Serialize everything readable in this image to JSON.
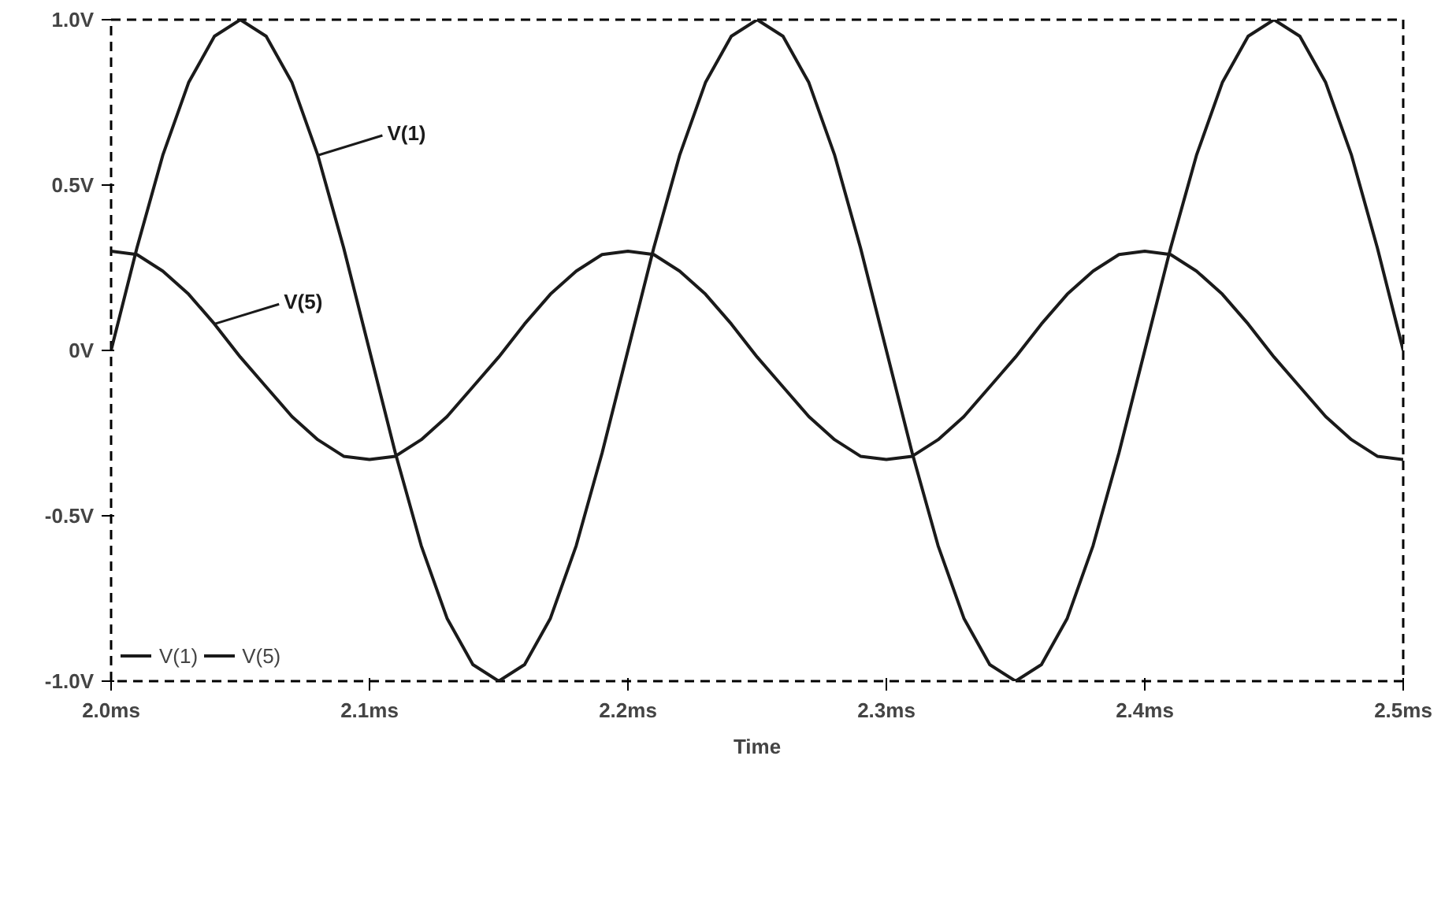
{
  "chart_data": {
    "type": "line",
    "xlabel": "Time",
    "x": [
      2.0,
      2.01,
      2.02,
      2.03,
      2.04,
      2.05,
      2.06,
      2.07,
      2.08,
      2.09,
      2.1,
      2.11,
      2.12,
      2.13,
      2.14,
      2.15,
      2.16,
      2.17,
      2.18,
      2.19,
      2.2,
      2.21,
      2.22,
      2.23,
      2.24,
      2.25,
      2.26,
      2.27,
      2.28,
      2.29,
      2.3,
      2.31,
      2.32,
      2.33,
      2.34,
      2.35,
      2.36,
      2.37,
      2.38,
      2.39,
      2.4,
      2.41,
      2.42,
      2.43,
      2.44,
      2.45,
      2.46,
      2.47,
      2.48,
      2.49,
      2.5
    ],
    "series": [
      {
        "name": "V(1)",
        "color": "#1a1a1a",
        "values": [
          0,
          0.31,
          0.59,
          0.81,
          0.95,
          1,
          0.95,
          0.81,
          0.59,
          0.31,
          0,
          -0.31,
          -0.59,
          -0.81,
          -0.95,
          -1,
          -0.95,
          -0.81,
          -0.59,
          -0.31,
          0,
          0.31,
          0.59,
          0.81,
          0.95,
          1,
          0.95,
          0.81,
          0.59,
          0.31,
          0,
          -0.31,
          -0.59,
          -0.81,
          -0.95,
          -1,
          -0.95,
          -0.81,
          -0.59,
          -0.31,
          0,
          0.31,
          0.59,
          0.81,
          0.95,
          1,
          0.95,
          0.81,
          0.59,
          0.31,
          0
        ]
      },
      {
        "name": "V(5)",
        "color": "#1a1a1a",
        "values": [
          0.3,
          0.29,
          0.24,
          0.17,
          0.08,
          -0.02,
          -0.11,
          -0.2,
          -0.27,
          -0.32,
          -0.33,
          -0.32,
          -0.27,
          -0.2,
          -0.11,
          -0.02,
          0.08,
          0.17,
          0.24,
          0.29,
          0.3,
          0.29,
          0.24,
          0.17,
          0.08,
          -0.02,
          -0.11,
          -0.2,
          -0.27,
          -0.32,
          -0.33,
          -0.32,
          -0.27,
          -0.2,
          -0.11,
          -0.02,
          0.08,
          0.17,
          0.24,
          0.29,
          0.3,
          0.29,
          0.24,
          0.17,
          0.08,
          -0.02,
          -0.11,
          -0.2,
          -0.27,
          -0.32,
          -0.33
        ]
      }
    ],
    "xlim": [
      2.0,
      2.5
    ],
    "xticks": [
      {
        "value": 2.0,
        "label": "2.0ms"
      },
      {
        "value": 2.1,
        "label": "2.1ms"
      },
      {
        "value": 2.2,
        "label": "2.2ms"
      },
      {
        "value": 2.3,
        "label": "2.3ms"
      },
      {
        "value": 2.4,
        "label": "2.4ms"
      },
      {
        "value": 2.5,
        "label": "2.5ms"
      }
    ],
    "ylim": [
      -1.0,
      1.0
    ],
    "yticks": [
      {
        "value": -1.0,
        "label": "-1.0V"
      },
      {
        "value": -0.5,
        "label": "-0.5V"
      },
      {
        "value": 0,
        "label": "0V"
      },
      {
        "value": 0.5,
        "label": "0.5V"
      },
      {
        "value": 1.0,
        "label": "1.0V"
      }
    ],
    "annotations": [
      {
        "text": "V(1)",
        "x": 2.08,
        "y": 0.59
      },
      {
        "text": "V(5)",
        "x": 2.04,
        "y": 0.08
      }
    ],
    "grid": false,
    "legend": "bottom left",
    "marker": "none",
    "line_style": "solid"
  }
}
